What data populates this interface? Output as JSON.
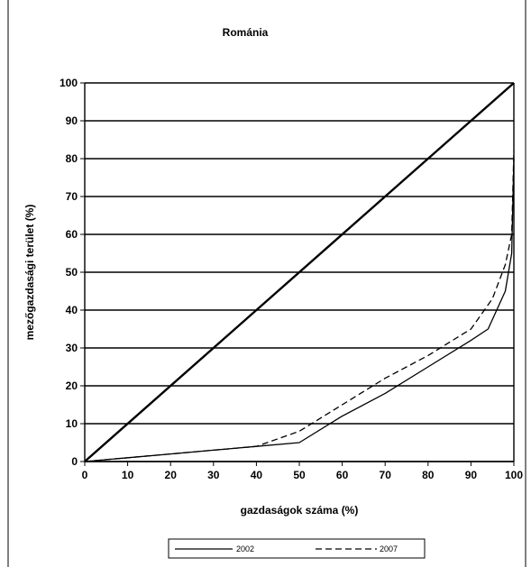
{
  "chart_data": {
    "type": "line",
    "title": "Románia",
    "xlabel": "gazdaságok száma (%)",
    "ylabel": "mezőgazdasági terület (%)",
    "xlim": [
      0,
      100
    ],
    "ylim": [
      0,
      100
    ],
    "x_ticks": [
      "0",
      "10",
      "20",
      "30",
      "40",
      "50",
      "60",
      "70",
      "80",
      "90",
      "100"
    ],
    "y_ticks": [
      "0",
      "10",
      "20",
      "30",
      "40",
      "50",
      "60",
      "70",
      "80",
      "90",
      "100"
    ],
    "grid": "horizontal",
    "legend_position": "bottom",
    "series": [
      {
        "name": "",
        "style": "solid",
        "color": "#000000",
        "x": [
          0,
          100
        ],
        "y": [
          0,
          100
        ]
      },
      {
        "name": "2002",
        "style": "solid",
        "color": "#000000",
        "x": [
          0,
          10,
          20,
          30,
          40,
          50,
          60,
          70,
          80,
          90,
          94,
          98,
          99.5,
          100
        ],
        "y": [
          0,
          1,
          2,
          3,
          4,
          5,
          12,
          18,
          25,
          32,
          35,
          45,
          55,
          80
        ]
      },
      {
        "name": "2007",
        "style": "dashed",
        "color": "#000000",
        "x": [
          0,
          10,
          20,
          30,
          40,
          50,
          60,
          70,
          80,
          90,
          95,
          98,
          99.5,
          100
        ],
        "y": [
          0,
          1,
          2,
          3,
          4,
          8,
          15,
          22,
          28,
          35,
          43,
          52,
          60,
          82
        ]
      }
    ]
  }
}
